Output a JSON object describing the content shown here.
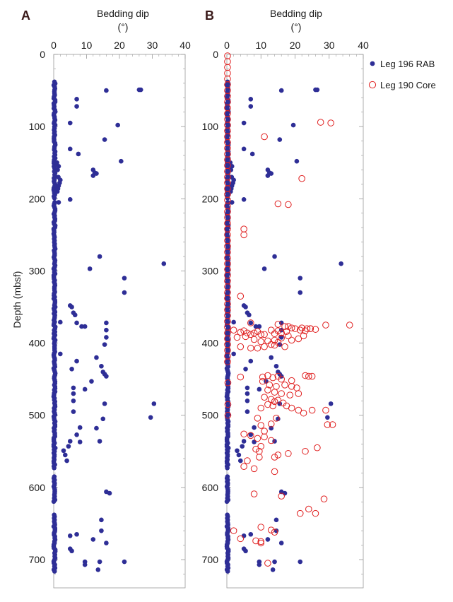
{
  "colors": {
    "rab": "#2e2e96",
    "core": "#e02020",
    "frame": "#999999"
  },
  "chart_data": [
    {
      "panel": "A",
      "type": "scatter",
      "xlabel": "Bedding dip",
      "xunit": "(°)",
      "ylabel": "Depth (mbsf)",
      "xlim": [
        0,
        40
      ],
      "ylim": [
        0,
        740
      ],
      "x_axis_position": "top",
      "y_reversed": true,
      "xticks": [
        "0",
        "10",
        "20",
        "30",
        "40"
      ],
      "yticks": [
        "0",
        "100",
        "200",
        "300",
        "400",
        "500",
        "600",
        "700"
      ],
      "grid": false,
      "series": [
        {
          "name": "Leg 196 RAB",
          "marker": "filled-circle",
          "points": [
            [
              26,
              49
            ],
            [
              26.5,
              49
            ],
            [
              16,
              50
            ],
            [
              7,
              62
            ],
            [
              7,
              72
            ],
            [
              5,
              95
            ],
            [
              19.5,
              98
            ],
            [
              15.5,
              118
            ],
            [
              5,
              131
            ],
            [
              7.5,
              138
            ],
            [
              20.5,
              148
            ],
            [
              12,
              160
            ],
            [
              12.5,
              164
            ],
            [
              12,
              168
            ],
            [
              13,
              165
            ],
            [
              2,
              174
            ],
            [
              1.5,
              182
            ],
            [
              5,
              201
            ],
            [
              1.5,
              205
            ],
            [
              14,
              280
            ],
            [
              33.5,
              290
            ],
            [
              11,
              297
            ],
            [
              21.5,
              310
            ],
            [
              21.5,
              330
            ],
            [
              5,
              348
            ],
            [
              5.5,
              350
            ],
            [
              6,
              358
            ],
            [
              6.5,
              361
            ],
            [
              2,
              371
            ],
            [
              7,
              372
            ],
            [
              8.5,
              377
            ],
            [
              9.5,
              377
            ],
            [
              16,
              372
            ],
            [
              16,
              382
            ],
            [
              16,
              392
            ],
            [
              15.5,
              402
            ],
            [
              13,
              420
            ],
            [
              7,
              425
            ],
            [
              2,
              415
            ],
            [
              14.5,
              432
            ],
            [
              15,
              440
            ],
            [
              15.5,
              443
            ],
            [
              16,
              446
            ],
            [
              11.5,
              453
            ],
            [
              5.5,
              436
            ],
            [
              9.5,
              464
            ],
            [
              6,
              462
            ],
            [
              6,
              470
            ],
            [
              6,
              480
            ],
            [
              15.5,
              484
            ],
            [
              30.5,
              484
            ],
            [
              6,
              495
            ],
            [
              29.5,
              503
            ],
            [
              15,
              505
            ],
            [
              8,
              517
            ],
            [
              7,
              527
            ],
            [
              5,
              536
            ],
            [
              8,
              537
            ],
            [
              13,
              518
            ],
            [
              4.5,
              543
            ],
            [
              3.5,
              555
            ],
            [
              4,
              563
            ],
            [
              3,
              549
            ],
            [
              14,
              536
            ],
            [
              16,
              606
            ],
            [
              17,
              608
            ],
            [
              14.5,
              645
            ],
            [
              14.5,
              660
            ],
            [
              7,
              665
            ],
            [
              5,
              667
            ],
            [
              12,
              672
            ],
            [
              16,
              677
            ],
            [
              5,
              685
            ],
            [
              5.5,
              688
            ],
            [
              9.5,
              703
            ],
            [
              9.5,
              707
            ],
            [
              21.5,
              703
            ],
            [
              13.5,
              714
            ],
            [
              14,
              703
            ]
          ]
        }
      ]
    },
    {
      "panel": "B",
      "type": "scatter",
      "xlabel": "Bedding dip",
      "xunit": "(°)",
      "ylabel": "",
      "xlim": [
        0,
        40
      ],
      "ylim": [
        0,
        740
      ],
      "x_axis_position": "top",
      "y_reversed": true,
      "xticks": [
        "0",
        "10",
        "20",
        "30",
        "40"
      ],
      "yticks": [
        "0",
        "100",
        "200",
        "300",
        "400",
        "500",
        "600",
        "700"
      ],
      "grid": false,
      "legend": {
        "position": "top-right",
        "entries": [
          "Leg 196 RAB",
          "Leg 190 Core"
        ]
      },
      "series": [
        {
          "name": "Leg 196 RAB",
          "marker": "filled-circle",
          "same_as_panel": "A"
        },
        {
          "name": "Leg 190 Core",
          "marker": "open-circle",
          "points": [
            [
              27.5,
              94
            ],
            [
              30.5,
              95
            ],
            [
              11,
              114
            ],
            [
              22,
              172
            ],
            [
              15,
              207
            ],
            [
              18,
              208
            ],
            [
              5,
              242
            ],
            [
              5,
              250
            ],
            [
              4,
              335
            ],
            [
              7,
              372
            ],
            [
              15,
              374
            ],
            [
              17,
              377
            ],
            [
              18,
              377
            ],
            [
              19,
              379
            ],
            [
              20,
              380
            ],
            [
              22,
              379
            ],
            [
              23.5,
              380
            ],
            [
              24.5,
              380
            ],
            [
              29,
              375
            ],
            [
              36,
              375
            ],
            [
              2,
              382
            ],
            [
              4,
              385
            ],
            [
              5,
              383
            ],
            [
              6,
              386
            ],
            [
              7,
              388
            ],
            [
              8,
              386
            ],
            [
              9,
              384
            ],
            [
              10,
              388
            ],
            [
              11,
              388
            ],
            [
              13,
              382
            ],
            [
              14,
              387
            ],
            [
              15,
              383
            ],
            [
              16,
              386
            ],
            [
              17.5,
              384
            ],
            [
              21.5,
              382
            ],
            [
              23,
              383
            ],
            [
              24.5,
              380
            ],
            [
              26,
              381
            ],
            [
              3,
              392
            ],
            [
              5.5,
              391
            ],
            [
              8,
              395
            ],
            [
              10,
              398
            ],
            [
              12,
              397
            ],
            [
              14,
              396
            ],
            [
              16,
              393
            ],
            [
              18,
              390
            ],
            [
              19,
              396
            ],
            [
              21,
              394
            ],
            [
              22.5,
              390
            ],
            [
              4,
              405
            ],
            [
              7,
              407
            ],
            [
              9,
              407
            ],
            [
              11,
              405
            ],
            [
              13,
              402
            ],
            [
              14,
              403
            ],
            [
              15,
              399
            ],
            [
              17,
              405
            ],
            [
              10.5,
              447
            ],
            [
              12,
              445
            ],
            [
              13.5,
              448
            ],
            [
              15,
              446
            ],
            [
              16,
              450
            ],
            [
              19,
              452
            ],
            [
              23,
              445
            ],
            [
              24,
              446
            ],
            [
              25,
              446
            ],
            [
              4,
              447
            ],
            [
              10.5,
              453
            ],
            [
              12.5,
              458
            ],
            [
              14.5,
              460
            ],
            [
              17,
              458
            ],
            [
              19,
              460
            ],
            [
              20.5,
              462
            ],
            [
              12,
              465
            ],
            [
              14,
              468
            ],
            [
              16,
              470
            ],
            [
              18.5,
              472
            ],
            [
              21,
              470
            ],
            [
              11,
              475
            ],
            [
              13,
              478
            ],
            [
              14,
              481
            ],
            [
              15,
              479
            ],
            [
              16.5,
              483
            ],
            [
              17.5,
              487
            ],
            [
              19,
              490
            ],
            [
              21,
              493
            ],
            [
              22.5,
              497
            ],
            [
              25,
              493
            ],
            [
              29,
              493
            ],
            [
              12,
              485
            ],
            [
              13.5,
              487
            ],
            [
              10,
              490
            ],
            [
              9,
              504
            ],
            [
              10,
              514
            ],
            [
              11,
              522
            ],
            [
              13,
              512
            ],
            [
              14.5,
              504
            ],
            [
              5,
              526
            ],
            [
              7,
              528
            ],
            [
              9,
              532
            ],
            [
              11,
              530
            ],
            [
              13,
              535
            ],
            [
              10,
              543
            ],
            [
              8.5,
              547
            ],
            [
              9.5,
              550
            ],
            [
              6,
              563
            ],
            [
              5,
              571
            ],
            [
              8,
              574
            ],
            [
              9.5,
              558
            ],
            [
              14,
              558
            ],
            [
              14,
              578
            ],
            [
              15,
              555
            ],
            [
              18,
              553
            ],
            [
              23,
              550
            ],
            [
              26.5,
              545
            ],
            [
              29.5,
              513
            ],
            [
              31,
              513
            ],
            [
              8,
              609
            ],
            [
              16,
              612
            ],
            [
              28.5,
              616
            ],
            [
              24,
              630
            ],
            [
              21.5,
              636
            ],
            [
              26,
              636
            ],
            [
              10,
              655
            ],
            [
              2,
              660
            ],
            [
              4,
              671
            ],
            [
              8.5,
              674
            ],
            [
              10,
              677
            ],
            [
              10,
              675
            ],
            [
              13,
              659
            ],
            [
              14,
              662
            ],
            [
              12,
              705
            ]
          ]
        }
      ]
    }
  ]
}
